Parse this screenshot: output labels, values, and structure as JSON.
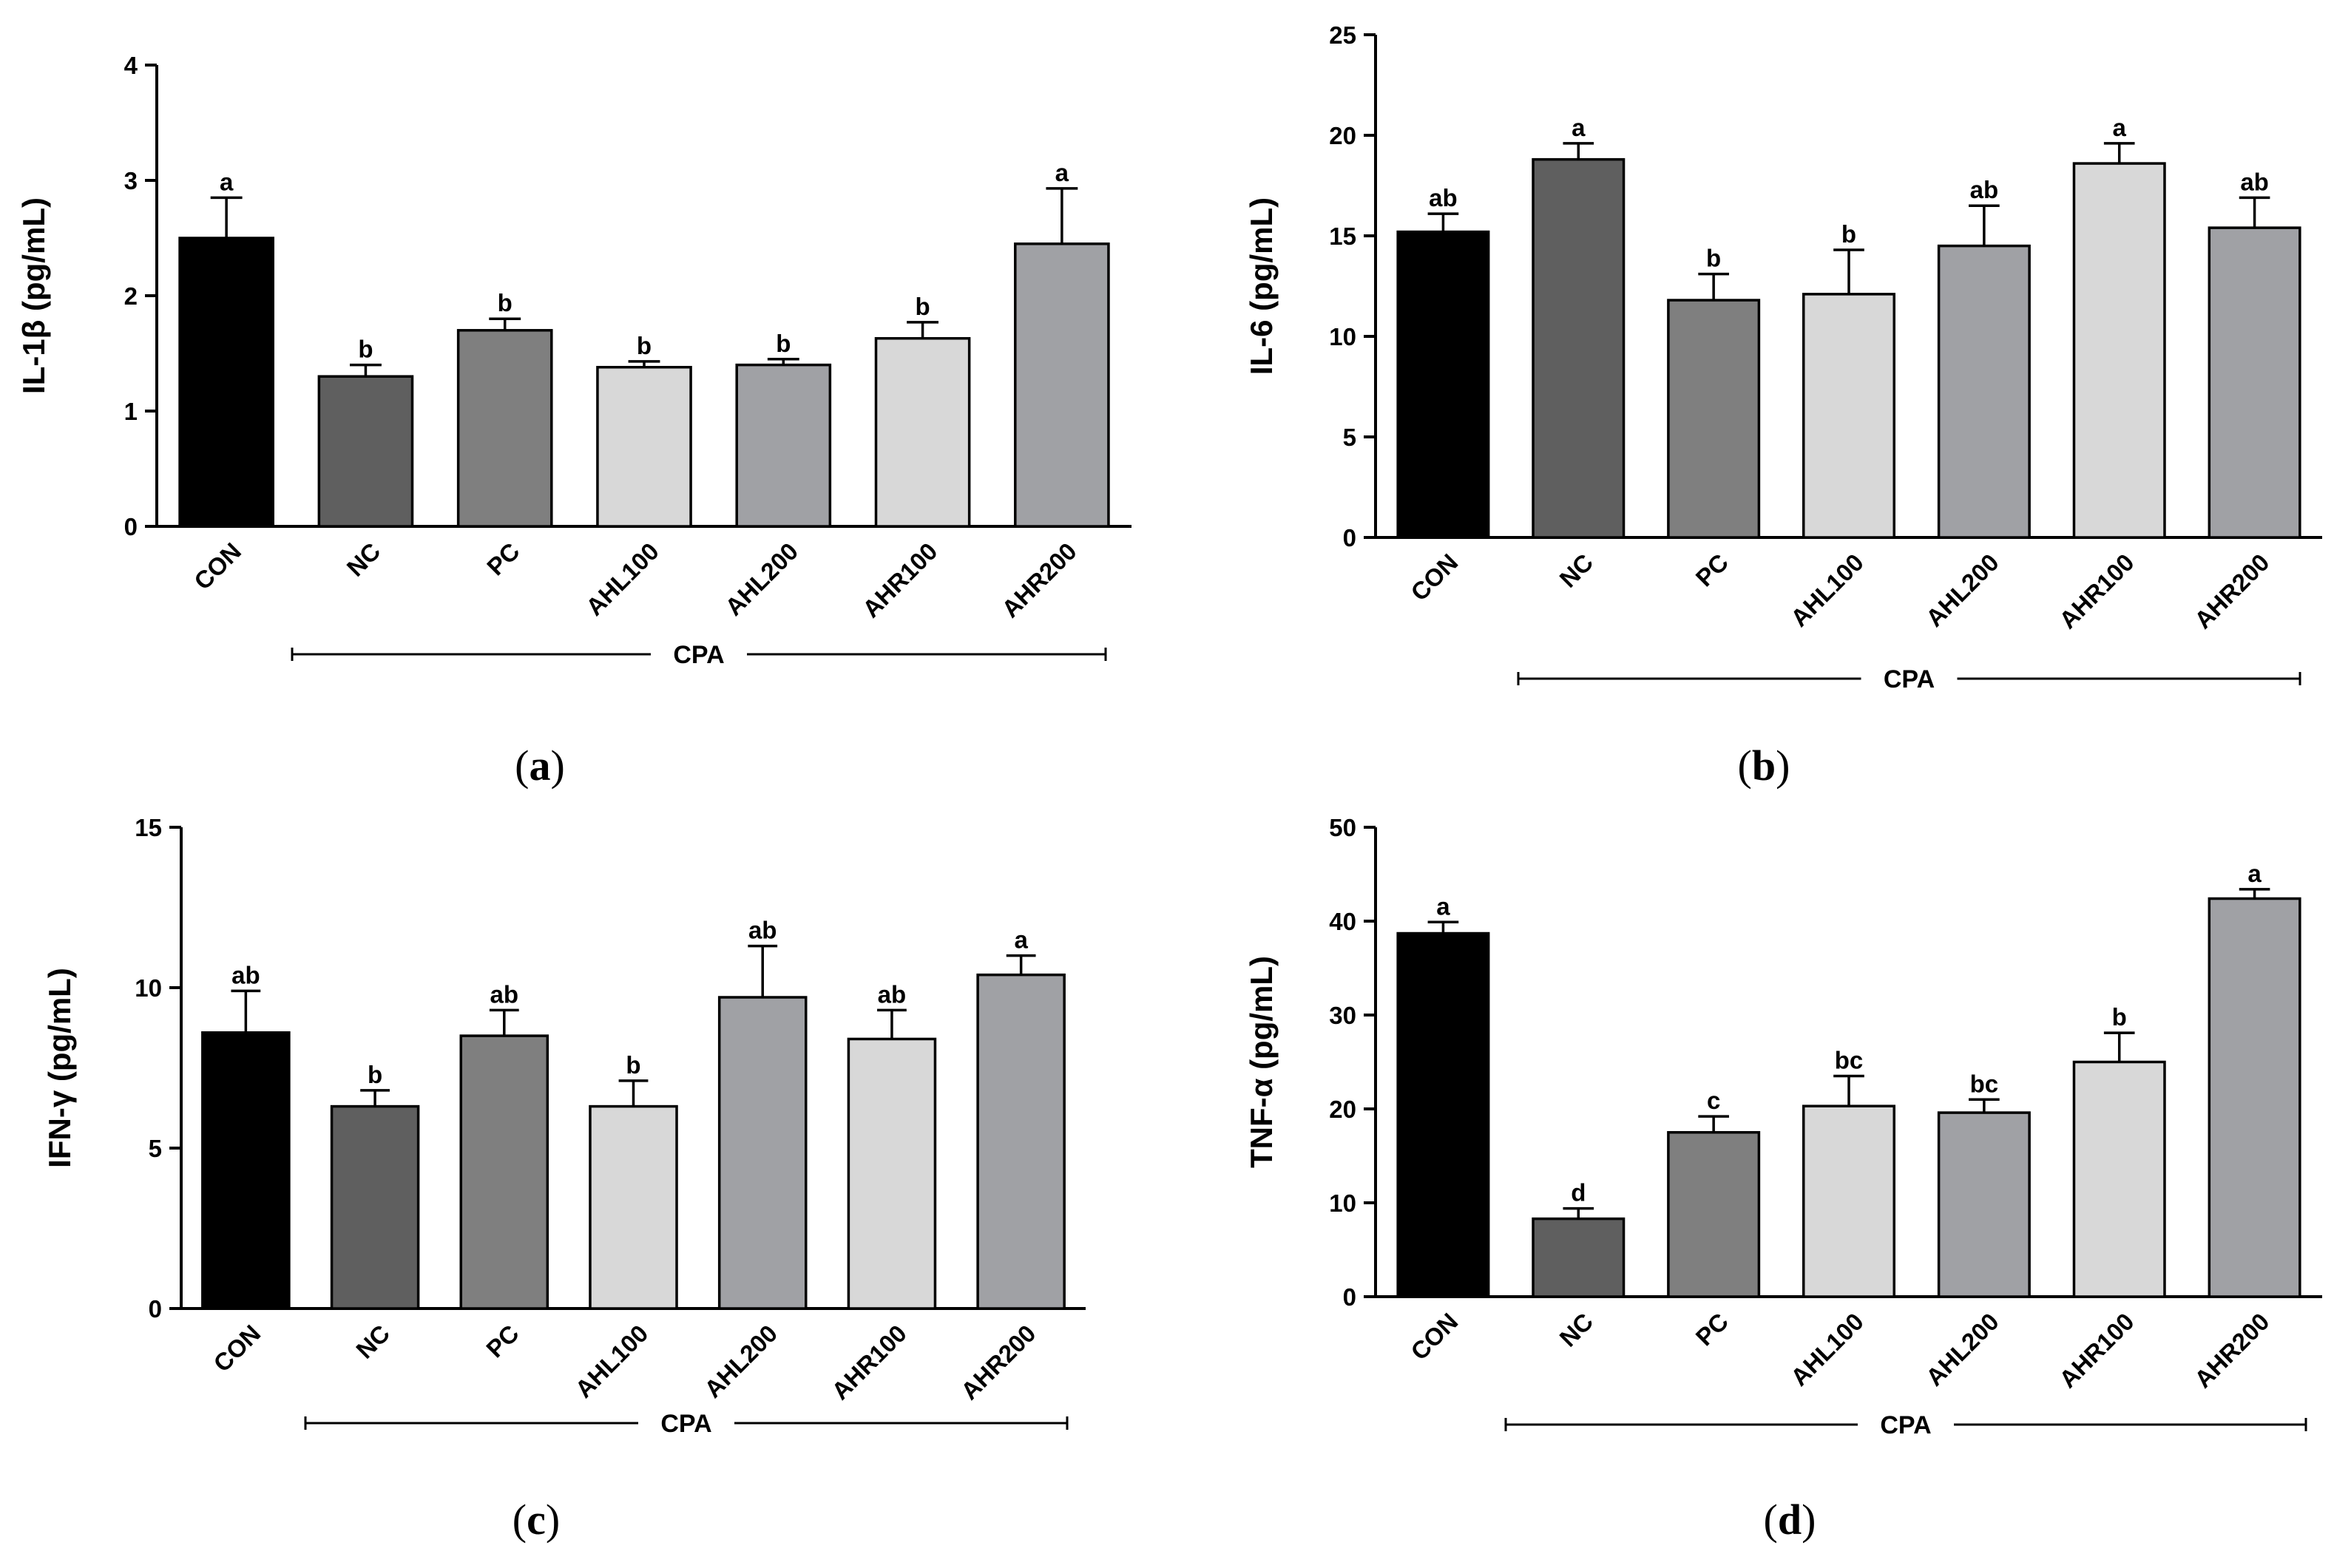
{
  "figure": {
    "group_bracket_label": "CPA",
    "colors": {
      "CON": "#000000",
      "NC": "#5f5f5f",
      "PC": "#7f7f7f",
      "AHL100": "#d8d8d8",
      "AHL200": "#a0a1a5",
      "AHR100": "#d8d8d8",
      "AHR200": "#a0a1a5"
    }
  },
  "chart_data": [
    {
      "id": "a",
      "type": "bar",
      "panel_label": "a",
      "ylabel": "IL-1β (pg/mL)",
      "xlabel": "",
      "ylim": [
        0,
        4
      ],
      "yticks": [
        0,
        1,
        2,
        3,
        4
      ],
      "categories": [
        "CON",
        "NC",
        "PC",
        "AHL100",
        "AHL200",
        "AHR100",
        "AHR200"
      ],
      "values": [
        2.5,
        1.3,
        1.7,
        1.38,
        1.4,
        1.63,
        2.45
      ],
      "errors": [
        0.35,
        0.1,
        0.1,
        0.05,
        0.05,
        0.14,
        0.48
      ],
      "significance": [
        "a",
        "b",
        "b",
        "b",
        "b",
        "b",
        "a"
      ]
    },
    {
      "id": "b",
      "type": "bar",
      "panel_label": "b",
      "ylabel": "IL-6 (pg/mL)",
      "xlabel": "",
      "ylim": [
        0,
        25
      ],
      "yticks": [
        0,
        5,
        10,
        15,
        20,
        25
      ],
      "categories": [
        "CON",
        "NC",
        "PC",
        "AHL100",
        "AHL200",
        "AHR100",
        "AHR200"
      ],
      "values": [
        15.2,
        18.8,
        11.8,
        12.1,
        14.5,
        18.6,
        15.4
      ],
      "errors": [
        0.9,
        0.8,
        1.3,
        2.2,
        2.0,
        1.0,
        1.5
      ],
      "significance": [
        "ab",
        "a",
        "b",
        "b",
        "ab",
        "a",
        "ab"
      ]
    },
    {
      "id": "c",
      "type": "bar",
      "panel_label": "c",
      "ylabel": "IFN-γ (pg/mL)",
      "xlabel": "",
      "ylim": [
        0,
        15
      ],
      "yticks": [
        0,
        5,
        10,
        15
      ],
      "categories": [
        "CON",
        "NC",
        "PC",
        "AHL100",
        "AHL200",
        "AHR100",
        "AHR200"
      ],
      "values": [
        8.6,
        6.3,
        8.5,
        6.3,
        9.7,
        8.4,
        10.4
      ],
      "errors": [
        1.3,
        0.5,
        0.8,
        0.8,
        1.6,
        0.9,
        0.6
      ],
      "significance": [
        "ab",
        "b",
        "ab",
        "b",
        "ab",
        "ab",
        "a"
      ]
    },
    {
      "id": "d",
      "type": "bar",
      "panel_label": "d",
      "ylabel": "TNF-α (pg/mL)",
      "xlabel": "",
      "ylim": [
        0,
        50
      ],
      "yticks": [
        0,
        10,
        20,
        30,
        40,
        50
      ],
      "categories": [
        "CON",
        "NC",
        "PC",
        "AHL100",
        "AHL200",
        "AHR100",
        "AHR200"
      ],
      "values": [
        38.7,
        8.3,
        17.5,
        20.3,
        19.6,
        25.0,
        42.4
      ],
      "errors": [
        1.2,
        1.1,
        1.7,
        3.2,
        1.4,
        3.1,
        1.0
      ],
      "significance": [
        "a",
        "d",
        "c",
        "bc",
        "bc",
        "b",
        "a"
      ]
    }
  ]
}
